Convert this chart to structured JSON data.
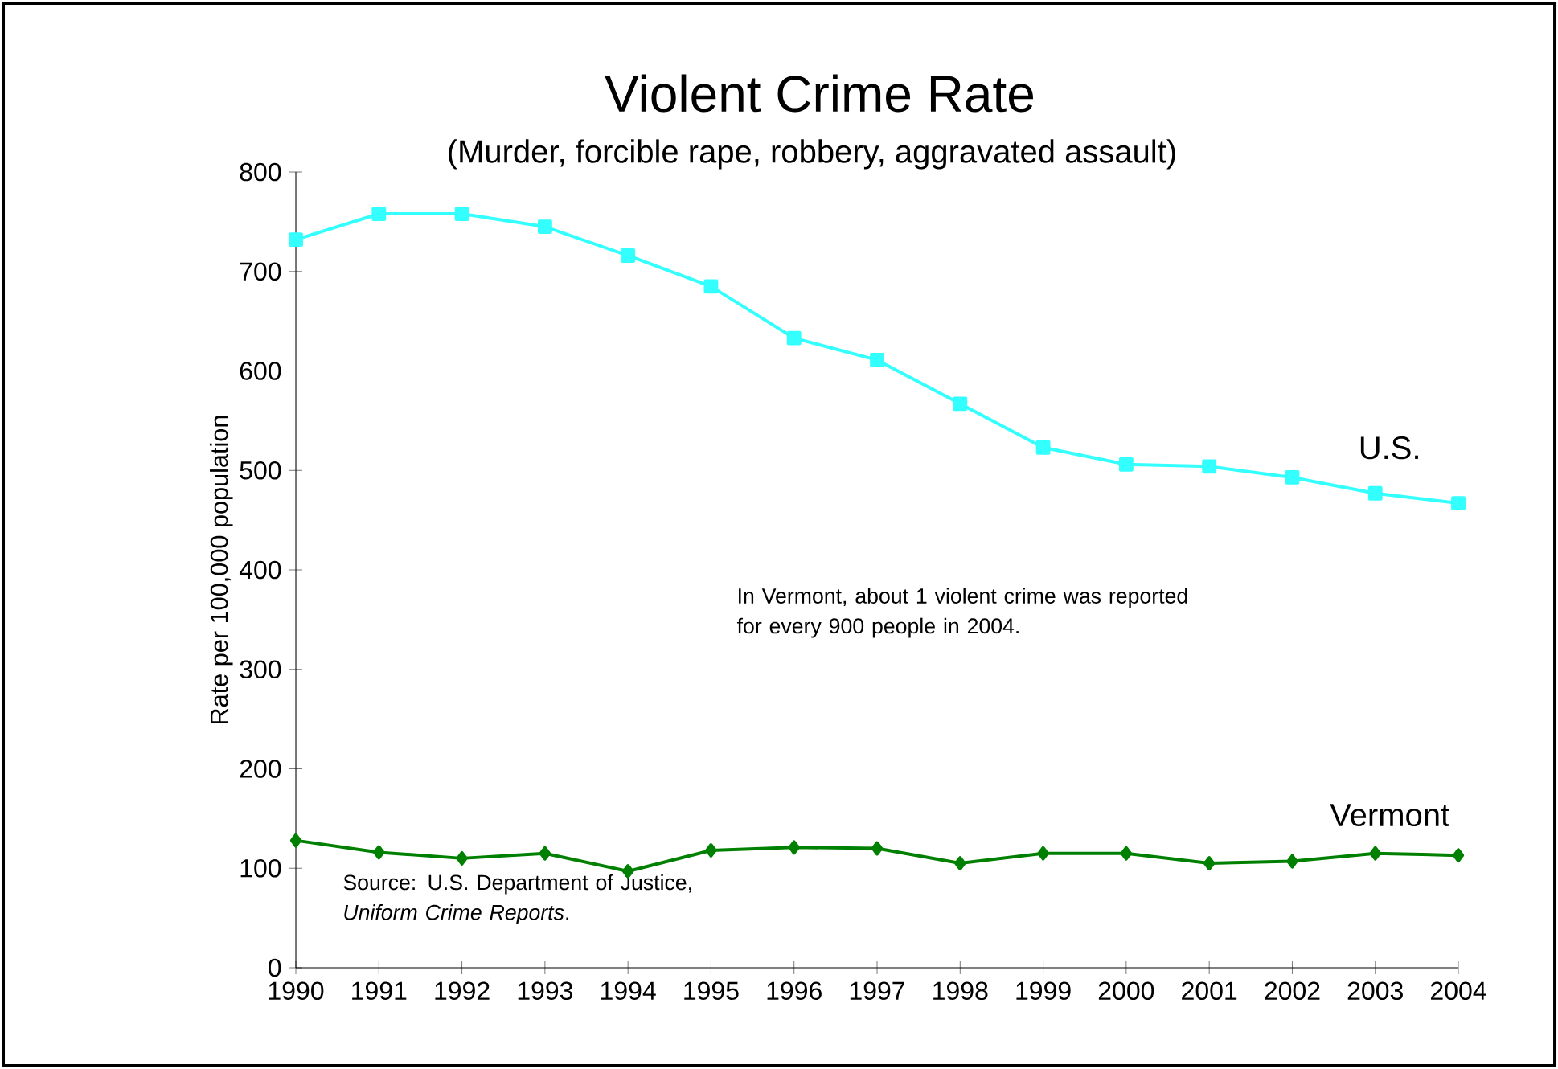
{
  "chart_data": {
    "type": "line",
    "title": "Violent Crime Rate",
    "subtitle": "(Murder, forcible rape, robbery, aggravated assault)",
    "ylabel": "Rate per 100,000 population",
    "x": [
      1990,
      1991,
      1992,
      1993,
      1994,
      1995,
      1996,
      1997,
      1998,
      1999,
      2000,
      2001,
      2002,
      2003,
      2004
    ],
    "series": [
      {
        "name": "U.S.",
        "color": "#33ffff",
        "marker": "square",
        "values": [
          732,
          758,
          758,
          745,
          716,
          685,
          633,
          611,
          567,
          523,
          506,
          504,
          493,
          477,
          467
        ]
      },
      {
        "name": "Vermont",
        "color": "#008000",
        "marker": "diamond",
        "values": [
          128,
          116,
          110,
          115,
          97,
          118,
          121,
          120,
          105,
          115,
          115,
          105,
          107,
          115,
          113
        ]
      }
    ],
    "xlim": [
      1990,
      2004
    ],
    "xticks": [
      1990,
      1991,
      1992,
      1993,
      1994,
      1995,
      1996,
      1997,
      1998,
      1999,
      2000,
      2001,
      2002,
      2003,
      2004
    ],
    "ylim": [
      0,
      800
    ],
    "yticks": [
      0,
      100,
      200,
      300,
      400,
      500,
      600,
      700,
      800
    ],
    "grid": false,
    "annotations": [
      "In Vermont, about 1 violent crime was reported for every 900 people in 2004.",
      "Source: U.S. Department of Justice, *Uniform Crime Reports*."
    ]
  }
}
